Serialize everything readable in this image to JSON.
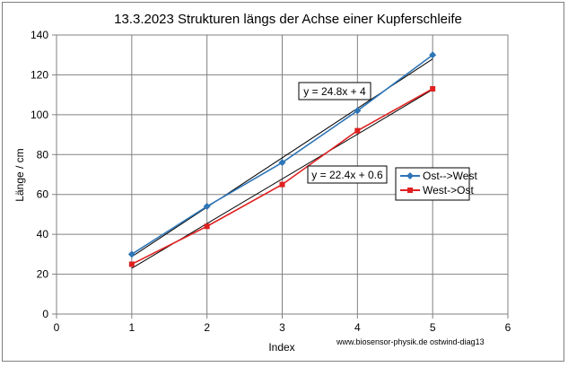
{
  "chart_data": {
    "type": "scatter",
    "title": "13.3.2023 Strukturen längs der Achse einer Kupferschleife",
    "xlabel": "Index",
    "ylabel": "Länge / cm",
    "xlim": [
      0,
      6
    ],
    "ylim": [
      0,
      140
    ],
    "xticks": [
      0,
      1,
      2,
      3,
      4,
      5,
      6
    ],
    "yticks": [
      0,
      20,
      40,
      60,
      80,
      100,
      120,
      140
    ],
    "grid": true,
    "legend_position": "right",
    "series": [
      {
        "name": "Ost-->West",
        "color": "#2e75b6",
        "marker": "diamond",
        "x": [
          1,
          2,
          3,
          4,
          5
        ],
        "values": [
          30,
          54,
          76,
          102,
          130
        ],
        "trendline": {
          "slope": 24.8,
          "intercept": 4,
          "label": "y = 24.8x + 4"
        }
      },
      {
        "name": "West->Ost",
        "color": "#e02020",
        "marker": "square",
        "x": [
          1,
          2,
          3,
          4,
          5
        ],
        "values": [
          25,
          44,
          65,
          92,
          113
        ],
        "trendline": {
          "slope": 22.4,
          "intercept": 0.6,
          "label": "y = 22.4x + 0.6"
        }
      }
    ],
    "annotation": "www.biosensor-physik.de  ostwind-diag13"
  }
}
